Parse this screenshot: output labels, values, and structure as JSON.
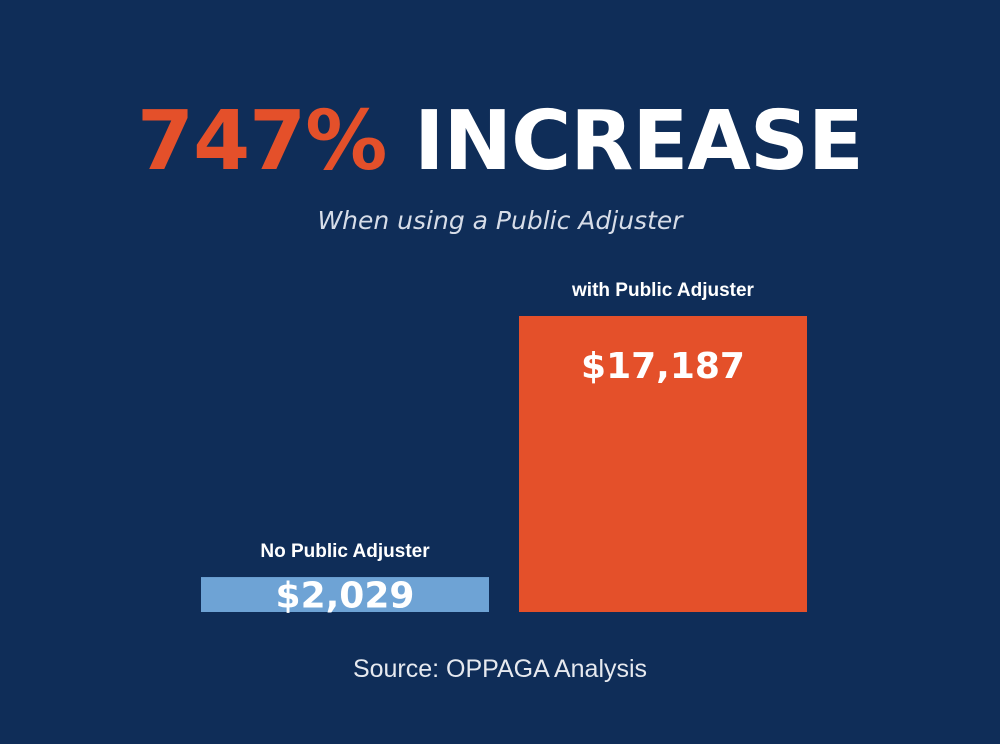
{
  "headline": {
    "percent": "747%",
    "word": "INCREASE"
  },
  "subtitle": "When using a Public Adjuster",
  "source": "Source: OPPAGA Analysis",
  "colors": {
    "background": "#0f2d58",
    "accent": "#e4502a",
    "bar_no_adjuster": "#6ea3d5",
    "bar_with_adjuster": "#e4502a",
    "text": "#ffffff"
  },
  "chart_data": {
    "type": "bar",
    "categories": [
      "No Public Adjuster",
      "with Public Adjuster"
    ],
    "values": [
      2029,
      17187
    ],
    "value_labels": [
      "$2,029",
      "$17,187"
    ],
    "bar_colors": [
      "#6ea3d5",
      "#e4502a"
    ],
    "ylim": [
      0,
      17187
    ],
    "grid": false,
    "legend": "none"
  }
}
